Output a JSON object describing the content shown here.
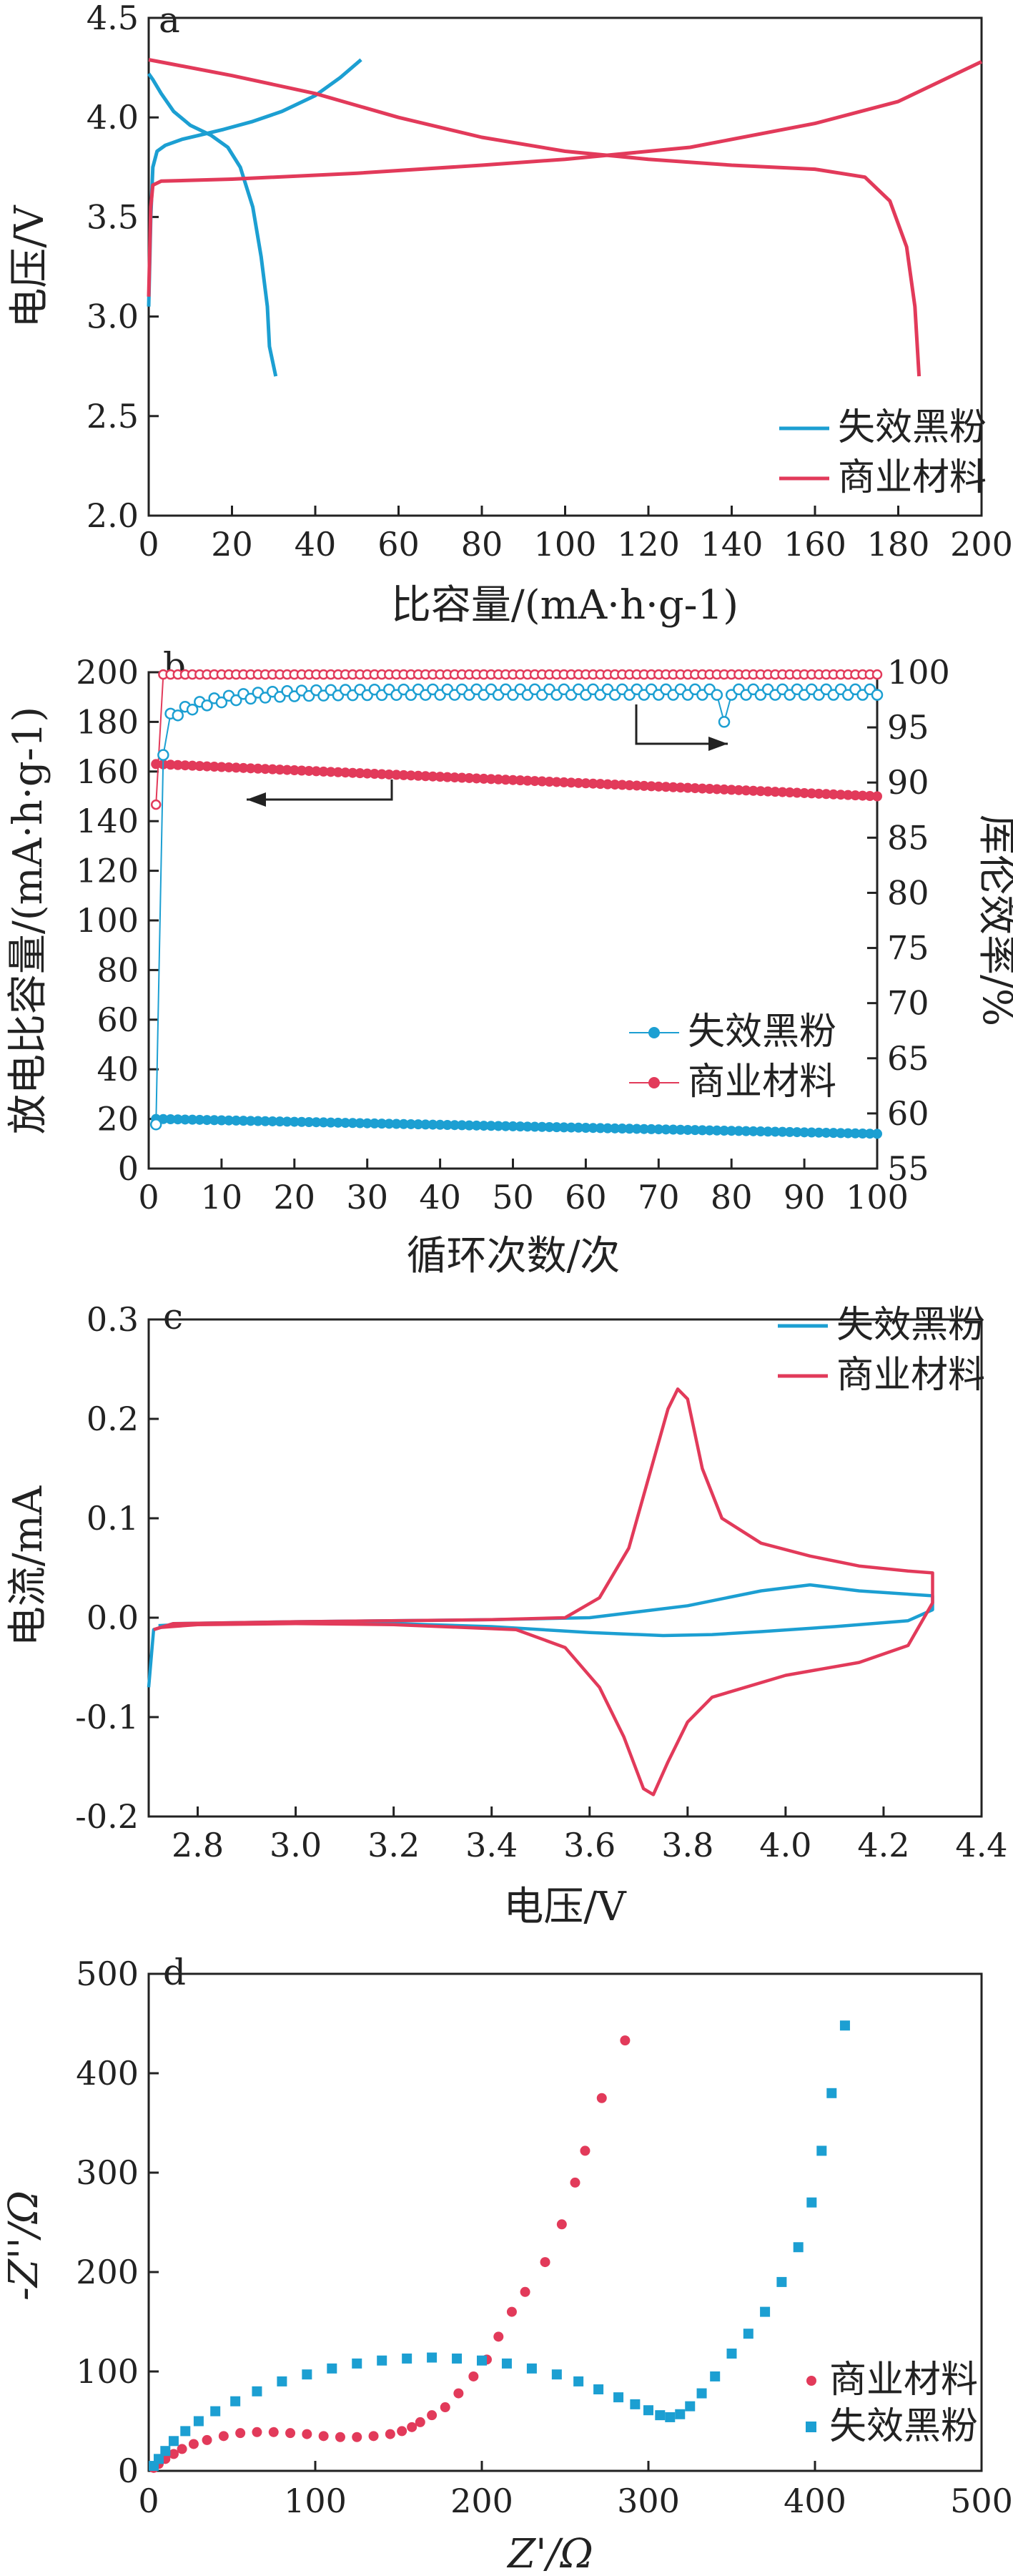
{
  "colors": {
    "blue": "#1c9fd2",
    "red": "#e23a5a",
    "axis": "#222222"
  },
  "chart_data": [
    {
      "panel": "a",
      "type": "line",
      "xlabel": "比容量/(mA·h·g-1)",
      "ylabel": "电压/V",
      "xlim": [
        0,
        200
      ],
      "ylim": [
        2.0,
        4.5
      ],
      "xticks": [
        0,
        20,
        40,
        60,
        80,
        100,
        120,
        140,
        160,
        180,
        200
      ],
      "yticks": [
        2.0,
        2.5,
        3.0,
        3.5,
        4.0,
        4.5
      ],
      "legend_position": "bottom-right",
      "series": [
        {
          "name": "失效黑粉",
          "color": "blue",
          "curves": [
            [
              [
                0,
                3.05
              ],
              [
                0.5,
                3.5
              ],
              [
                1,
                3.75
              ],
              [
                2,
                3.83
              ],
              [
                4,
                3.86
              ],
              [
                8,
                3.89
              ],
              [
                12,
                3.91
              ],
              [
                18,
                3.94
              ],
              [
                25,
                3.98
              ],
              [
                32,
                4.03
              ],
              [
                40,
                4.11
              ],
              [
                46,
                4.2
              ],
              [
                51,
                4.29
              ]
            ],
            [
              [
                0,
                4.22
              ],
              [
                1,
                4.19
              ],
              [
                3,
                4.12
              ],
              [
                6,
                4.03
              ],
              [
                10,
                3.96
              ],
              [
                15,
                3.91
              ],
              [
                19,
                3.85
              ],
              [
                22,
                3.75
              ],
              [
                25,
                3.55
              ],
              [
                27,
                3.3
              ],
              [
                28.5,
                3.05
              ],
              [
                29,
                2.85
              ],
              [
                30.5,
                2.7
              ]
            ]
          ]
        },
        {
          "name": "商业材料",
          "color": "red",
          "curves": [
            [
              [
                0,
                3.1
              ],
              [
                0.5,
                3.55
              ],
              [
                1,
                3.66
              ],
              [
                3,
                3.68
              ],
              [
                20,
                3.69
              ],
              [
                50,
                3.72
              ],
              [
                80,
                3.76
              ],
              [
                100,
                3.79
              ],
              [
                130,
                3.85
              ],
              [
                160,
                3.97
              ],
              [
                180,
                4.08
              ],
              [
                200,
                4.28
              ]
            ],
            [
              [
                0,
                4.29
              ],
              [
                5,
                4.27
              ],
              [
                20,
                4.21
              ],
              [
                40,
                4.12
              ],
              [
                60,
                4.0
              ],
              [
                80,
                3.9
              ],
              [
                100,
                3.83
              ],
              [
                120,
                3.79
              ],
              [
                140,
                3.76
              ],
              [
                160,
                3.74
              ],
              [
                172,
                3.7
              ],
              [
                178,
                3.58
              ],
              [
                182,
                3.35
              ],
              [
                184,
                3.05
              ],
              [
                185,
                2.7
              ]
            ]
          ]
        }
      ]
    },
    {
      "panel": "b",
      "type": "scatter",
      "xlabel": "循环次数/次",
      "ylabel": "放电比容量/(mA·h·g-1)",
      "y2label": "库伦效率/%",
      "xlim": [
        0,
        100
      ],
      "ylim": [
        0,
        200
      ],
      "y2lim": [
        55,
        100
      ],
      "xticks": [
        0,
        10,
        20,
        30,
        40,
        50,
        60,
        70,
        80,
        90,
        100
      ],
      "yticks": [
        0,
        20,
        40,
        60,
        80,
        100,
        120,
        140,
        160,
        180,
        200
      ],
      "y2ticks": [
        55,
        60,
        65,
        70,
        75,
        80,
        85,
        90,
        95,
        100
      ],
      "legend_position": "bottom-right",
      "capacity": {
        "失效黑粉": {
          "start": 20,
          "end": 14
        },
        "商业材料": {
          "start": 163,
          "end": 150
        }
      },
      "coulombic_efficiency": {
        "失效黑粉": {
          "first": 59,
          "second": 92.5,
          "plateau": 98.2,
          "dip_cycle": 79,
          "dip_value": 95.5
        },
        "商业材料": {
          "first": 88,
          "plateau": 99.8
        }
      },
      "series": [
        {
          "name": "失效黑粉",
          "color": "blue"
        },
        {
          "name": "商业材料",
          "color": "red"
        }
      ]
    },
    {
      "panel": "c",
      "type": "line",
      "xlabel": "电压/V",
      "ylabel": "电流/mA",
      "xlim": [
        2.7,
        4.4
      ],
      "ylim": [
        -0.2,
        0.3
      ],
      "xticks": [
        2.8,
        3.0,
        3.2,
        3.4,
        3.6,
        3.8,
        4.0,
        4.2,
        4.4
      ],
      "yticks": [
        -0.2,
        -0.1,
        0.0,
        0.1,
        0.2,
        0.3
      ],
      "legend_position": "top-right",
      "series": [
        {
          "name": "失效黑粉",
          "color": "blue",
          "curves": [
            [
              [
                2.7,
                -0.07
              ],
              [
                2.71,
                -0.012
              ],
              [
                2.75,
                -0.006
              ],
              [
                3.0,
                -0.004
              ],
              [
                3.4,
                -0.002
              ],
              [
                3.6,
                0.0
              ],
              [
                3.8,
                0.012
              ],
              [
                3.95,
                0.027
              ],
              [
                4.05,
                0.033
              ],
              [
                4.15,
                0.027
              ],
              [
                4.3,
                0.022
              ],
              [
                4.3,
                0.008
              ],
              [
                4.25,
                -0.003
              ],
              [
                4.1,
                -0.009
              ],
              [
                3.95,
                -0.014
              ],
              [
                3.85,
                -0.017
              ],
              [
                3.75,
                -0.018
              ],
              [
                3.6,
                -0.015
              ],
              [
                3.4,
                -0.009
              ],
              [
                3.2,
                -0.006
              ],
              [
                3.0,
                -0.005
              ],
              [
                2.8,
                -0.006
              ],
              [
                2.72,
                -0.008
              ]
            ]
          ]
        },
        {
          "name": "商业材料",
          "color": "red",
          "curves": [
            [
              [
                2.71,
                -0.012
              ],
              [
                2.75,
                -0.006
              ],
              [
                3.0,
                -0.004
              ],
              [
                3.4,
                -0.002
              ],
              [
                3.55,
                0.0
              ],
              [
                3.62,
                0.02
              ],
              [
                3.68,
                0.07
              ],
              [
                3.72,
                0.14
              ],
              [
                3.76,
                0.21
              ],
              [
                3.78,
                0.23
              ],
              [
                3.8,
                0.22
              ],
              [
                3.83,
                0.15
              ],
              [
                3.87,
                0.1
              ],
              [
                3.95,
                0.075
              ],
              [
                4.05,
                0.062
              ],
              [
                4.15,
                0.052
              ],
              [
                4.25,
                0.047
              ],
              [
                4.3,
                0.045
              ],
              [
                4.3,
                0.015
              ],
              [
                4.25,
                -0.028
              ],
              [
                4.15,
                -0.045
              ],
              [
                4.0,
                -0.058
              ],
              [
                3.85,
                -0.08
              ],
              [
                3.8,
                -0.105
              ],
              [
                3.76,
                -0.145
              ],
              [
                3.73,
                -0.178
              ],
              [
                3.71,
                -0.172
              ],
              [
                3.67,
                -0.12
              ],
              [
                3.62,
                -0.07
              ],
              [
                3.55,
                -0.03
              ],
              [
                3.45,
                -0.012
              ],
              [
                3.2,
                -0.007
              ],
              [
                3.0,
                -0.006
              ],
              [
                2.8,
                -0.007
              ],
              [
                2.72,
                -0.01
              ]
            ]
          ]
        }
      ]
    },
    {
      "panel": "d",
      "type": "scatter",
      "xlabel": "Z'/Ω",
      "ylabel": "-Z''/Ω",
      "xlim": [
        0,
        500
      ],
      "ylim": [
        0,
        500
      ],
      "xticks": [
        0,
        100,
        200,
        300,
        400,
        500
      ],
      "yticks": [
        0,
        100,
        200,
        300,
        400,
        500
      ],
      "legend_position": "bottom-right",
      "series": [
        {
          "name": "商业材料",
          "color": "red",
          "points": [
            [
              3,
              3
            ],
            [
              6,
              7
            ],
            [
              10,
              12
            ],
            [
              15,
              17
            ],
            [
              20,
              22
            ],
            [
              27,
              27
            ],
            [
              35,
              31
            ],
            [
              45,
              35
            ],
            [
              55,
              38
            ],
            [
              65,
              39
            ],
            [
              75,
              39
            ],
            [
              85,
              38
            ],
            [
              95,
              37
            ],
            [
              105,
              35
            ],
            [
              115,
              34
            ],
            [
              125,
              34
            ],
            [
              135,
              35
            ],
            [
              145,
              37
            ],
            [
              152,
              40
            ],
            [
              158,
              44
            ],
            [
              163,
              49
            ],
            [
              170,
              56
            ],
            [
              178,
              64
            ],
            [
              186,
              78
            ],
            [
              195,
              95
            ],
            [
              203,
              112
            ],
            [
              210,
              135
            ],
            [
              218,
              160
            ],
            [
              226,
              180
            ],
            [
              238,
              210
            ],
            [
              248,
              248
            ],
            [
              256,
              290
            ],
            [
              262,
              322
            ],
            [
              272,
              375
            ],
            [
              286,
              433
            ]
          ]
        },
        {
          "name": "失效黑粉",
          "color": "blue",
          "points": [
            [
              3,
              5
            ],
            [
              6,
              12
            ],
            [
              10,
              20
            ],
            [
              15,
              30
            ],
            [
              22,
              40
            ],
            [
              30,
              50
            ],
            [
              40,
              60
            ],
            [
              52,
              70
            ],
            [
              65,
              80
            ],
            [
              80,
              90
            ],
            [
              95,
              97
            ],
            [
              110,
              103
            ],
            [
              125,
              108
            ],
            [
              140,
              111
            ],
            [
              155,
              113
            ],
            [
              170,
              114
            ],
            [
              185,
              113
            ],
            [
              200,
              111
            ],
            [
              215,
              108
            ],
            [
              230,
              103
            ],
            [
              245,
              97
            ],
            [
              258,
              90
            ],
            [
              270,
              82
            ],
            [
              282,
              74
            ],
            [
              292,
              67
            ],
            [
              300,
              61
            ],
            [
              307,
              56
            ],
            [
              313,
              54
            ],
            [
              319,
              57
            ],
            [
              325,
              65
            ],
            [
              332,
              78
            ],
            [
              340,
              95
            ],
            [
              350,
              118
            ],
            [
              360,
              138
            ],
            [
              370,
              160
            ],
            [
              380,
              190
            ],
            [
              390,
              225
            ],
            [
              398,
              270
            ],
            [
              404,
              322
            ],
            [
              410,
              380
            ],
            [
              418,
              448
            ]
          ]
        }
      ]
    }
  ]
}
